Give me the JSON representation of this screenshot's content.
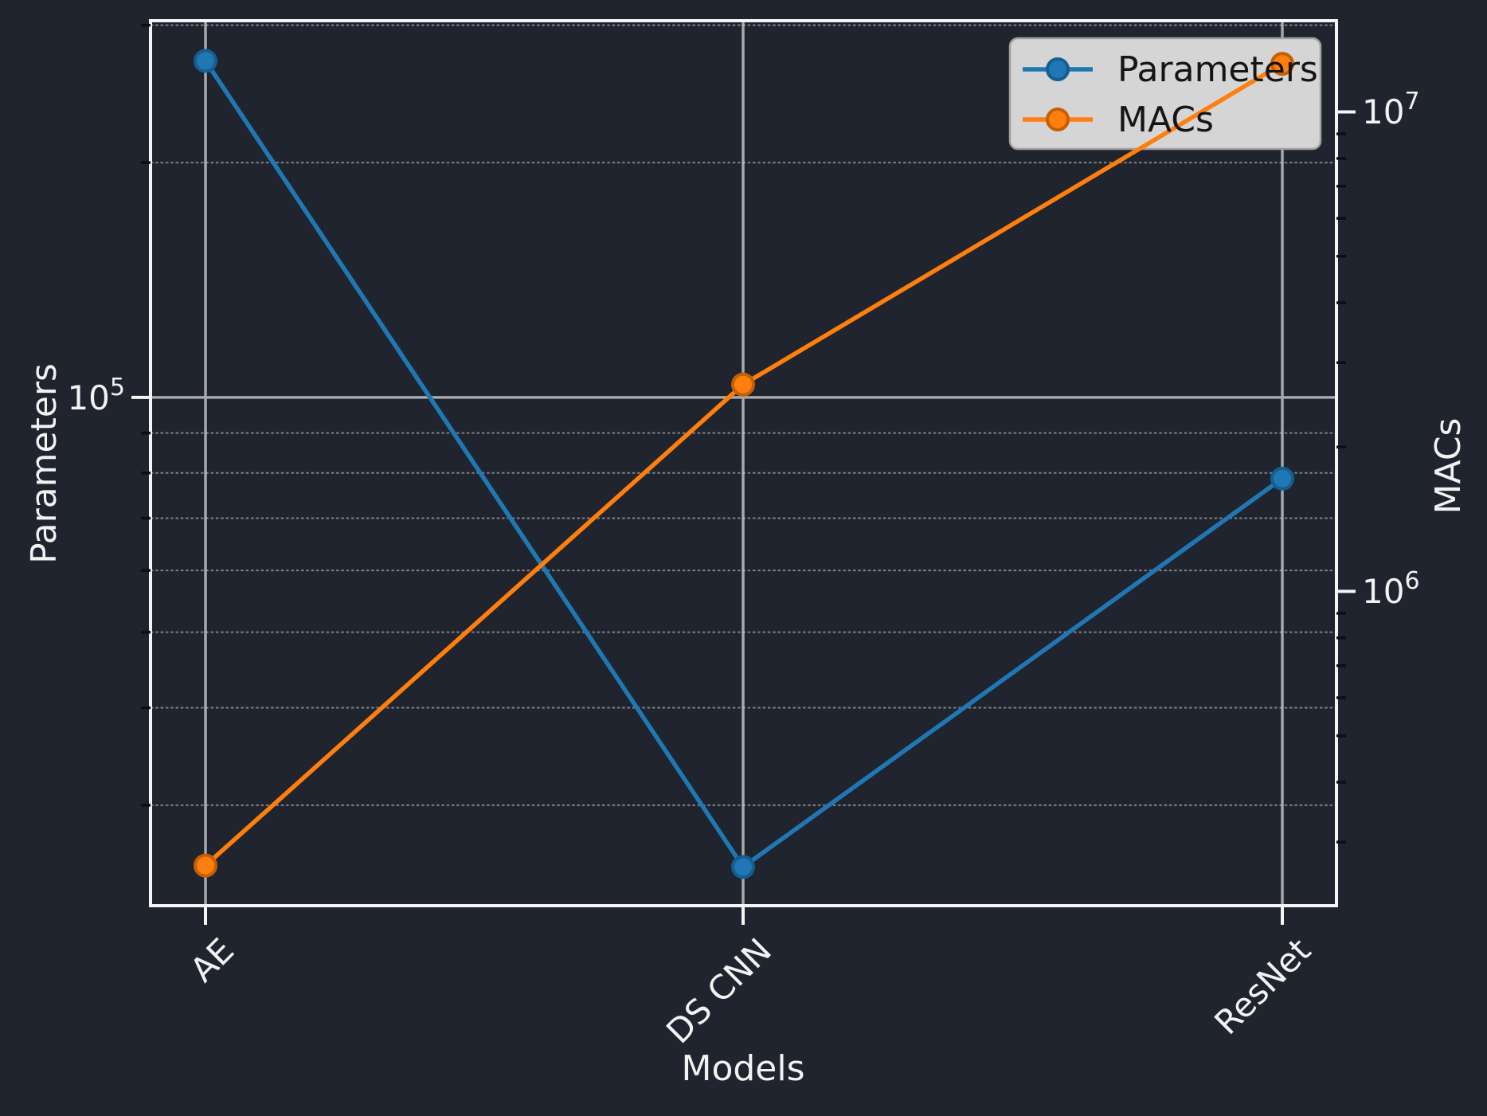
{
  "figure": {
    "background": "#20242e",
    "text_color": "#f2f2f2",
    "spine_color": "#f5f5f5",
    "grid_major_color": "#a5a8ad",
    "grid_minor_color": "#cfcfcf",
    "minor_tick_color": "#0c0e13",
    "legend": {
      "background": "#d5d5d5",
      "border": "#a0a0a0",
      "text_color": "#151515"
    }
  },
  "chart_data": {
    "type": "line",
    "title": "",
    "xlabel": "Models",
    "ylabel_left": "Parameters",
    "ylabel_right": "MACs",
    "categories": [
      "AE",
      "DS CNN",
      "ResNet"
    ],
    "series": [
      {
        "name": "Parameters",
        "axis": "left",
        "color": "#1f77b4",
        "marker_edge": "#155e8f",
        "marker": "circle",
        "values": [
          270000,
          25000,
          78700
        ]
      },
      {
        "name": "MACs",
        "axis": "right",
        "color": "#ff7f0e",
        "marker_edge": "#c45f04",
        "marker": "circle",
        "values": [
          268000,
          2700000,
          12600000
        ]
      }
    ],
    "left_axis": {
      "scale": "log",
      "range": [
        22300,
        304000
      ],
      "tick_labels": [
        {
          "base": "10",
          "exp": "5"
        }
      ]
    },
    "right_axis": {
      "scale": "log",
      "range": [
        221000,
        15500000
      ],
      "tick_labels": [
        {
          "base": "10",
          "exp": "7"
        },
        {
          "base": "10",
          "exp": "6"
        }
      ]
    },
    "legend_position": "upper right",
    "grid": {
      "major": "solid",
      "minor": "dashed"
    }
  }
}
